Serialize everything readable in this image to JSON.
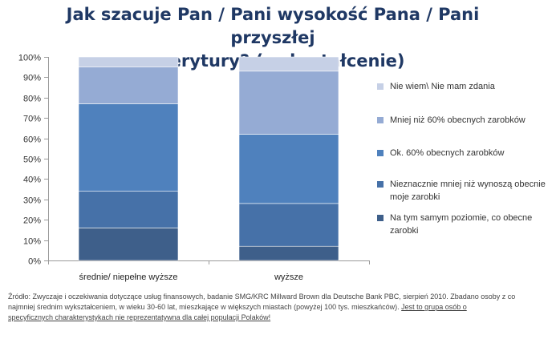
{
  "chart_data": {
    "type": "bar",
    "stacked": true,
    "title_lines": [
      "Jak szacuje Pan / Pani wysokość Pana / Pani przyszłej",
      "emerytury? (wykształcenie)"
    ],
    "categories": [
      "średnie/ niepełne wyższe",
      "wyższe"
    ],
    "ylim": [
      0,
      100
    ],
    "yticks": [
      "0%",
      "10%",
      "20%",
      "30%",
      "40%",
      "50%",
      "60%",
      "70%",
      "80%",
      "90%",
      "100%"
    ],
    "grid": false,
    "legend_position": "right",
    "series": [
      {
        "name": "Na tym samym poziomie, co obecne zarobki",
        "color": "#3e5f8a",
        "values": [
          16,
          7
        ]
      },
      {
        "name": "Nieznacznie mniej niż wynoszą obecnie moje zarobki",
        "color": "#4671a8",
        "values": [
          18,
          21
        ]
      },
      {
        "name": "Ok. 60% obecnych zarobków",
        "color": "#4f81bd",
        "values": [
          43,
          34
        ]
      },
      {
        "name": "Mniej niż 60% obecnych zarobków",
        "color": "#95abd4",
        "values": [
          18,
          31
        ]
      },
      {
        "name": "Nie wiem\\ Nie mam zdania",
        "color": "#c6d0e6",
        "values": [
          5,
          7
        ]
      }
    ]
  },
  "legend_lines": [
    [
      "Nie wiem\\ Nie mam zdania"
    ],
    [
      "Mniej niż 60% obecnych zarobków"
    ],
    [
      "Ok. 60% obecnych zarobków"
    ],
    [
      "Nieznacznie mniej niż wynoszą obecnie",
      "moje zarobki"
    ],
    [
      "Na tym samym  poziomie, co obecne",
      "zarobki"
    ]
  ],
  "source": {
    "line1": "Źródło: Zwyczaje i oczekiwania dotyczące usług finansowych, badanie SMG/KRC Millward Brown dla Deutsche Bank PBC, sierpień 2010. Zbadano osoby z co",
    "line2a": "najmniej średnim wykształceniem, w wieku 30-60 lat, mieszkające w większych miastach (powyżej 100 tys. mieszkańców). ",
    "line2b": "Jest to grupa osób o",
    "line3": "specyficznych charakterystykach nie reprezentatywna dla całej populacji Polaków!"
  }
}
